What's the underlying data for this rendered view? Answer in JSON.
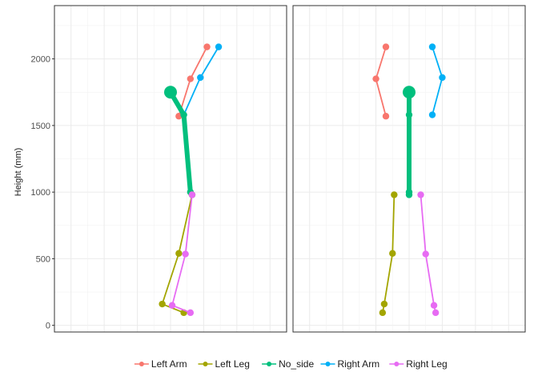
{
  "chart_data": {
    "type": "line",
    "ylabel": "Height (mm)",
    "ylim": [
      -50,
      2400
    ],
    "yticks": [
      0,
      500,
      1000,
      1500,
      2000
    ],
    "grid": true,
    "legend": {
      "placement": "bottom"
    },
    "series_colors": {
      "Left Arm": "#F8766D",
      "Left Leg": "#A3A500",
      "No_side": "#00BF7D",
      "Right Arm": "#00B0F6",
      "Right Leg": "#E76BF3"
    },
    "panels": [
      {
        "xlim": [
          -0.7,
          0.7
        ],
        "series": [
          {
            "name": "Left Arm",
            "x": [
              0.05,
              0.12,
              0.22
            ],
            "y": [
              1570,
              1850,
              2090
            ]
          },
          {
            "name": "Right Arm",
            "x": [
              0.08,
              0.18,
              0.29
            ],
            "y": [
              1580,
              1860,
              2090
            ]
          },
          {
            "name": "No_side",
            "x": [
              0.0,
              0.08,
              0.12,
              0.13
            ],
            "y": [
              1750,
              1580,
              1000,
              980
            ]
          },
          {
            "name": "Left Leg",
            "x": [
              0.13,
              0.05,
              -0.05,
              0.08
            ],
            "y": [
              980,
              540,
              160,
              95
            ]
          },
          {
            "name": "Right Leg",
            "x": [
              0.13,
              0.09,
              0.01,
              0.12
            ],
            "y": [
              980,
              535,
              150,
              95
            ]
          }
        ]
      },
      {
        "xlim": [
          -0.7,
          0.7
        ],
        "series": [
          {
            "name": "Left Arm",
            "x": [
              -0.14,
              -0.2,
              -0.14
            ],
            "y": [
              1570,
              1850,
              2090
            ]
          },
          {
            "name": "Right Arm",
            "x": [
              0.14,
              0.2,
              0.14
            ],
            "y": [
              1580,
              1860,
              2090
            ]
          },
          {
            "name": "No_side",
            "x": [
              0.0,
              0.0,
              0.0,
              0.0
            ],
            "y": [
              1750,
              1580,
              1000,
              980
            ]
          },
          {
            "name": "Left Leg",
            "x": [
              -0.09,
              -0.1,
              -0.15,
              -0.16
            ],
            "y": [
              980,
              540,
              160,
              95
            ]
          },
          {
            "name": "Right Leg",
            "x": [
              0.07,
              0.1,
              0.15,
              0.16
            ],
            "y": [
              980,
              535,
              150,
              95
            ]
          }
        ]
      }
    ]
  }
}
